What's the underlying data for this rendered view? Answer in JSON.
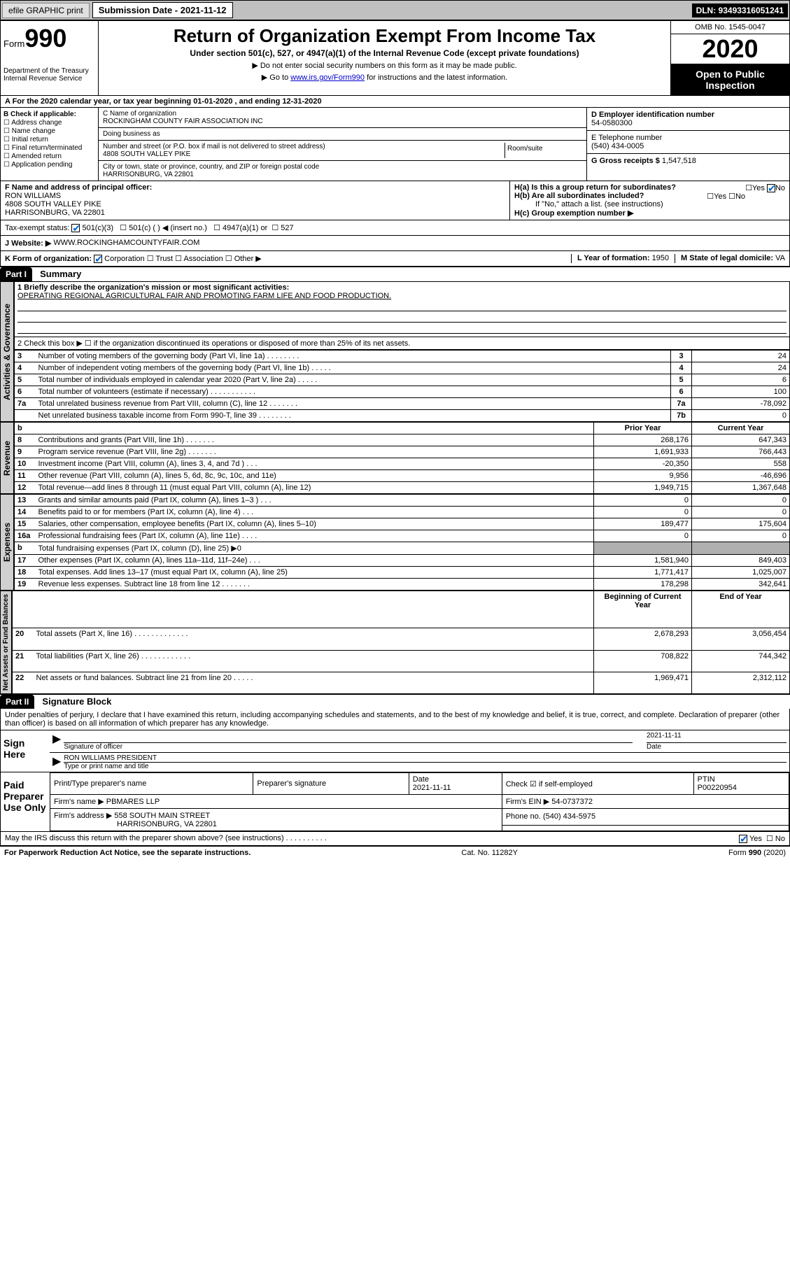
{
  "topbar": {
    "efile": "efile GRAPHIC print",
    "sub_label": "Submission Date - 2021-11-12",
    "dln": "DLN: 93493316051241"
  },
  "header": {
    "form_label": "Form",
    "form_num": "990",
    "dept": "Department of the Treasury\nInternal Revenue Service",
    "title": "Return of Organization Exempt From Income Tax",
    "subtitle": "Under section 501(c), 527, or 4947(a)(1) of the Internal Revenue Code (except private foundations)",
    "note1": "▶ Do not enter social security numbers on this form as it may be made public.",
    "note2_pre": "▶ Go to ",
    "note2_link": "www.irs.gov/Form990",
    "note2_post": " for instructions and the latest information.",
    "omb": "OMB No. 1545-0047",
    "year": "2020",
    "open_pub": "Open to Public Inspection"
  },
  "row_a": "A For the 2020 calendar year, or tax year beginning 01-01-2020    , and ending 12-31-2020",
  "b": {
    "label": "B Check if applicable:",
    "opts": [
      "Address change",
      "Name change",
      "Initial return",
      "Final return/terminated",
      "Amended return",
      "Application pending"
    ]
  },
  "c": {
    "name_lbl": "C Name of organization",
    "name": "ROCKINGHAM COUNTY FAIR ASSOCIATION INC",
    "dba_lbl": "Doing business as",
    "street_lbl": "Number and street (or P.O. box if mail is not delivered to street address)",
    "street": "4808 SOUTH VALLEY PIKE",
    "room_lbl": "Room/suite",
    "city_lbl": "City or town, state or province, country, and ZIP or foreign postal code",
    "city": "HARRISONBURG, VA  22801"
  },
  "d": {
    "ein_lbl": "D Employer identification number",
    "ein": "54-0580300",
    "tel_lbl": "E Telephone number",
    "tel": "(540) 434-0005",
    "gross_lbl": "G Gross receipts $",
    "gross": "1,547,518"
  },
  "f": {
    "lbl": "F  Name and address of principal officer:",
    "name": "RON WILLIAMS",
    "addr1": "4808 SOUTH VALLEY PIKE",
    "addr2": "HARRISONBURG, VA  22801"
  },
  "h": {
    "a": "H(a)  Is this a group return for subordinates?",
    "b": "H(b)  Are all subordinates included?",
    "b_note": "If \"No,\" attach a list. (see instructions)",
    "c": "H(c)  Group exemption number ▶"
  },
  "tax": {
    "lbl": "Tax-exempt status:",
    "o1": "501(c)(3)",
    "o2": "501(c) (  ) ◀ (insert no.)",
    "o3": "4947(a)(1) or",
    "o4": "527"
  },
  "j": {
    "lbl": "J   Website: ▶",
    "val": "WWW.ROCKINGHAMCOUNTYFAIR.COM"
  },
  "k": {
    "lbl": "K Form of organization:",
    "opts": [
      "Corporation",
      "Trust",
      "Association",
      "Other ▶"
    ],
    "l_lbl": "L Year of formation:",
    "l_val": "1950",
    "m_lbl": "M State of legal domicile:",
    "m_val": "VA"
  },
  "part1": {
    "hdr": "Part I",
    "title": "Summary"
  },
  "gov": {
    "vert": "Activities & Governance",
    "q1": "1  Briefly describe the organization's mission or most significant activities:",
    "q1_ans": "OPERATING REGIONAL AGRICULTURAL FAIR AND PROMOTING FARM LIFE AND FOOD PRODUCTION.",
    "q2": "2   Check this box ▶ ☐  if the organization discontinued its operations or disposed of more than 25% of its net assets.",
    "rows": [
      {
        "n": "3",
        "t": "Number of voting members of the governing body (Part VI, line 1a)   .   .   .   .   .   .   .   .",
        "b": "3",
        "v": "24"
      },
      {
        "n": "4",
        "t": "Number of independent voting members of the governing body (Part VI, line 1b)  .   .   .   .   .",
        "b": "4",
        "v": "24"
      },
      {
        "n": "5",
        "t": "Total number of individuals employed in calendar year 2020 (Part V, line 2a)   .   .   .   .   .",
        "b": "5",
        "v": "6"
      },
      {
        "n": "6",
        "t": "Total number of volunteers (estimate if necessary)   .   .   .   .   .   .   .   .   .   .   .",
        "b": "6",
        "v": "100"
      },
      {
        "n": "7a",
        "t": "Total unrelated business revenue from Part VIII, column (C), line 12  .   .   .   .   .   .   .",
        "b": "7a",
        "v": "-78,092"
      },
      {
        "n": "",
        "t": "Net unrelated business taxable income from Form 990-T, line 39   .   .   .   .   .   .   .   .",
        "b": "7b",
        "v": "0"
      }
    ]
  },
  "rev": {
    "vert": "Revenue",
    "hdr_prior": "Prior Year",
    "hdr_cur": "Current Year",
    "rows": [
      {
        "n": "8",
        "t": "Contributions and grants (Part VIII, line 1h)   .   .   .   .   .   .   .",
        "p": "268,176",
        "c": "647,343"
      },
      {
        "n": "9",
        "t": "Program service revenue (Part VIII, line 2g)   .   .   .   .   .   .   .",
        "p": "1,691,933",
        "c": "766,443"
      },
      {
        "n": "10",
        "t": "Investment income (Part VIII, column (A), lines 3, 4, and 7d )   .   .   .",
        "p": "-20,350",
        "c": "558"
      },
      {
        "n": "11",
        "t": "Other revenue (Part VIII, column (A), lines 5, 6d, 8c, 9c, 10c, and 11e)",
        "p": "9,956",
        "c": "-46,696"
      },
      {
        "n": "12",
        "t": "Total revenue—add lines 8 through 11 (must equal Part VIII, column (A), line 12)",
        "p": "1,949,715",
        "c": "1,367,648"
      }
    ]
  },
  "exp": {
    "vert": "Expenses",
    "rows": [
      {
        "n": "13",
        "t": "Grants and similar amounts paid (Part IX, column (A), lines 1–3 )   .   .   .",
        "p": "0",
        "c": "0"
      },
      {
        "n": "14",
        "t": "Benefits paid to or for members (Part IX, column (A), line 4)   .   .   .",
        "p": "0",
        "c": "0"
      },
      {
        "n": "15",
        "t": "Salaries, other compensation, employee benefits (Part IX, column (A), lines 5–10)",
        "p": "189,477",
        "c": "175,604"
      },
      {
        "n": "16a",
        "t": "Professional fundraising fees (Part IX, column (A), line 11e)   .   .   .   .",
        "p": "0",
        "c": "0"
      },
      {
        "n": "b",
        "t": "Total fundraising expenses (Part IX, column (D), line 25) ▶0",
        "p": "",
        "c": "",
        "grey": true
      },
      {
        "n": "17",
        "t": "Other expenses (Part IX, column (A), lines 11a–11d, 11f–24e)   .   .   .",
        "p": "1,581,940",
        "c": "849,403"
      },
      {
        "n": "18",
        "t": "Total expenses. Add lines 13–17 (must equal Part IX, column (A), line 25)",
        "p": "1,771,417",
        "c": "1,025,007"
      },
      {
        "n": "19",
        "t": "Revenue less expenses. Subtract line 18 from line 12   .   .   .   .   .   .   .",
        "p": "178,298",
        "c": "342,641"
      }
    ]
  },
  "net": {
    "vert": "Net Assets or Fund Balances",
    "hdr_beg": "Beginning of Current Year",
    "hdr_end": "End of Year",
    "rows": [
      {
        "n": "20",
        "t": "Total assets (Part X, line 16)   .   .   .   .   .   .   .   .   .   .   .   .   .",
        "p": "2,678,293",
        "c": "3,056,454"
      },
      {
        "n": "21",
        "t": "Total liabilities (Part X, line 26)   .   .   .   .   .   .   .   .   .   .   .   .",
        "p": "708,822",
        "c": "744,342"
      },
      {
        "n": "22",
        "t": "Net assets or fund balances. Subtract line 21 from line 20  .   .   .   .   .",
        "p": "1,969,471",
        "c": "2,312,112"
      }
    ]
  },
  "part2": {
    "hdr": "Part II",
    "title": "Signature Block"
  },
  "penalty": "Under penalties of perjury, I declare that I have examined this return, including accompanying schedules and statements, and to the best of my knowledge and belief, it is true, correct, and complete. Declaration of preparer (other than officer) is based on all information of which preparer has any knowledge.",
  "sign": {
    "left": "Sign Here",
    "sig_lbl": "Signature of officer",
    "date": "2021-11-11",
    "date_lbl": "Date",
    "name": "RON WILLIAMS PRESIDENT",
    "name_lbl": "Type or print name and title"
  },
  "prep": {
    "left": "Paid Preparer Use Only",
    "h1": "Print/Type preparer's name",
    "h2": "Preparer's signature",
    "h3": "Date",
    "h3v": "2021-11-11",
    "h4": "Check ☑ if self-employed",
    "h5": "PTIN",
    "h5v": "P00220954",
    "firm_lbl": "Firm's name    ▶",
    "firm": "PBMARES LLP",
    "ein_lbl": "Firm's EIN ▶",
    "ein": "54-0737372",
    "addr_lbl": "Firm's address ▶",
    "addr1": "558 SOUTH MAIN STREET",
    "addr2": "HARRISONBURG, VA  22801",
    "ph_lbl": "Phone no.",
    "ph": "(540) 434-5975"
  },
  "discuss": "May the IRS discuss this return with the preparer shown above? (see instructions)   .   .   .   .   .   .   .   .   .   .",
  "footer": {
    "l": "For Paperwork Reduction Act Notice, see the separate instructions.",
    "m": "Cat. No. 11282Y",
    "r": "Form 990 (2020)"
  }
}
